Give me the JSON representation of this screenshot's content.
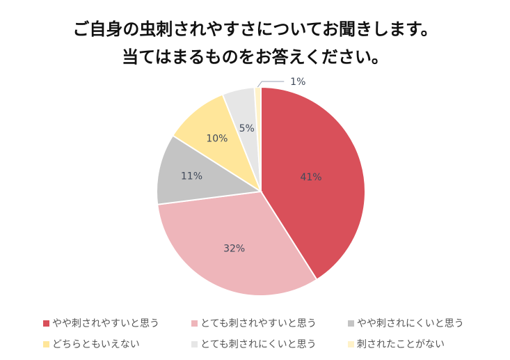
{
  "chart_data": {
    "type": "pie",
    "title": [
      "ご自身の虫刺されやすさについてお聞きします。",
      "当てはまるものをお答えください。"
    ],
    "slices": [
      {
        "label": "やや刺されやすいと思う",
        "value": 41,
        "display": "41%",
        "color": "#d9505a"
      },
      {
        "label": "とても刺されやすいと思う",
        "value": 32,
        "display": "32%",
        "color": "#eeb5ba"
      },
      {
        "label": "やや刺されにくいと思う",
        "value": 11,
        "display": "11%",
        "color": "#c4c4c4"
      },
      {
        "label": "どちらともいえない",
        "value": 10,
        "display": "10%",
        "color": "#ffe69a"
      },
      {
        "label": "とても刺されにくいと思う",
        "value": 5,
        "display": "5%",
        "color": "#e6e6e6"
      },
      {
        "label": "刺されたことがない",
        "value": 1,
        "display": "1%",
        "color": "#fff2c9"
      }
    ],
    "legend_position": "bottom"
  }
}
